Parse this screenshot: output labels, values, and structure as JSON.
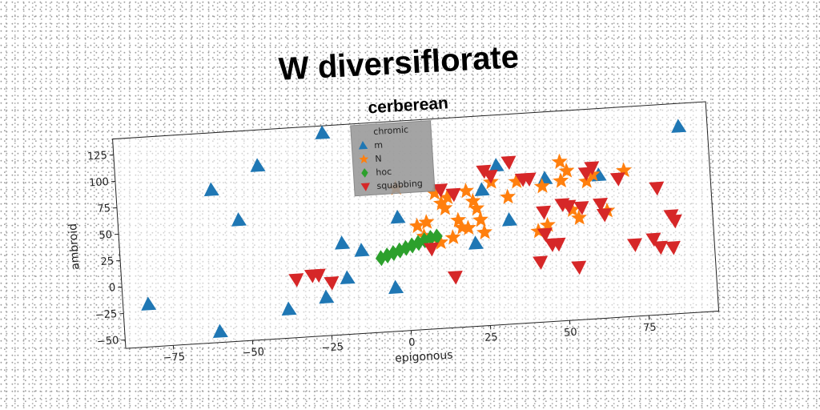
{
  "title": "W diversiflorate",
  "chart_data": {
    "type": "scatter",
    "title": "cerberean",
    "xlabel": "epigonous",
    "ylabel": "ambroid",
    "xlim": [
      -90,
      97
    ],
    "ylim": [
      -58,
      140
    ],
    "xticks": [
      -75,
      -50,
      -25,
      0,
      25,
      50,
      75
    ],
    "yticks": [
      -50,
      -25,
      0,
      25,
      50,
      75,
      100,
      125
    ],
    "xtick_labels": [
      "−75",
      "−50",
      "−25",
      "0",
      "25",
      "50",
      "75"
    ],
    "ytick_labels": [
      "−50",
      "−25",
      "0",
      "25",
      "50",
      "75",
      "100",
      "125"
    ],
    "grid": false,
    "legend": {
      "title": "chromic",
      "placement": "top-center"
    },
    "series": [
      {
        "name": "m",
        "marker": "triangle-up",
        "color": "#1f77b4",
        "x": [
          -82,
          -60,
          -60,
          -52,
          -45,
          -38,
          -26,
          -24,
          -20,
          -19,
          -4,
          -2,
          -14,
          22,
          25,
          30,
          33,
          45,
          62,
          88
        ],
        "y": [
          -18,
          86,
          -48,
          56,
          106,
          -31,
          -22,
          133,
          28,
          -5,
          -17,
          49,
          20,
          20,
          70,
          92,
          40,
          77,
          77,
          118
        ]
      },
      {
        "name": "N",
        "marker": "star",
        "color": "#ff7f0e",
        "x": [
          -2,
          4,
          6,
          7,
          10,
          11,
          12,
          13,
          14,
          15,
          17,
          18,
          20,
          20,
          22,
          23,
          24,
          25,
          28,
          33,
          36,
          42,
          44,
          45,
          50,
          50,
          52,
          53,
          55,
          58,
          60,
          64,
          70
        ],
        "y": [
          77,
          40,
          30,
          43,
          70,
          23,
          60,
          55,
          65,
          27,
          43,
          36,
          35,
          70,
          60,
          53,
          42,
          30,
          77,
          62,
          76,
          28,
          70,
          33,
          92,
          74,
          83,
          46,
          38,
          72,
          78,
          43,
          80
        ]
      },
      {
        "name": "hoc",
        "marker": "diamond",
        "color": "#2ca02c",
        "x": [
          -8,
          -6,
          -4,
          -2,
          0,
          2,
          4,
          6,
          8,
          10
        ],
        "y": [
          12,
          14,
          16,
          18,
          20,
          22,
          24,
          26,
          28,
          29
        ]
      },
      {
        "name": "squabbing",
        "marker": "triangle-down",
        "color": "#d62728",
        "x": [
          -35,
          -30,
          -28,
          -24,
          8,
          12,
          15,
          16,
          26,
          28,
          34,
          38,
          40,
          42,
          44,
          44,
          46,
          48,
          50,
          52,
          54,
          56,
          58,
          60,
          62,
          63,
          68,
          72,
          78,
          80,
          80,
          84,
          84,
          85
        ],
        "y": [
          -3,
          0,
          0,
          -8,
          18,
          73,
          -10,
          68,
          88,
          83,
          95,
          78,
          78,
          -1,
          46,
          25,
          15,
          15,
          52,
          50,
          -8,
          48,
          80,
          85,
          50,
          40,
          73,
          10,
          14,
          6,
          62,
          5,
          35,
          30
        ]
      }
    ]
  }
}
